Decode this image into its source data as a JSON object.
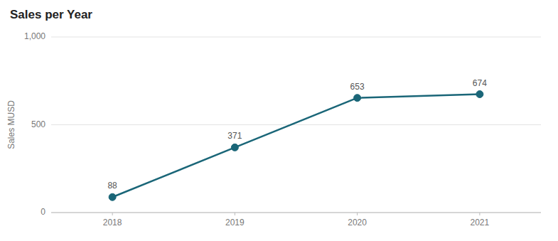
{
  "chart_data": {
    "type": "line",
    "title": "Sales per Year",
    "x": [
      2018,
      2019,
      2020,
      2021
    ],
    "values": [
      88,
      371,
      653,
      674
    ],
    "ylabel": "Sales MUSD",
    "xlim": [
      2017.5,
      2021.5
    ],
    "xticks": [
      2018,
      2019,
      2020,
      2021
    ],
    "ylim": [
      0,
      1000
    ],
    "yticks": [
      0,
      500,
      {
        "value": 1000,
        "label": "1,000"
      }
    ],
    "color": "#1a6678",
    "marker": "circle",
    "grid": true,
    "data_labels": true
  }
}
